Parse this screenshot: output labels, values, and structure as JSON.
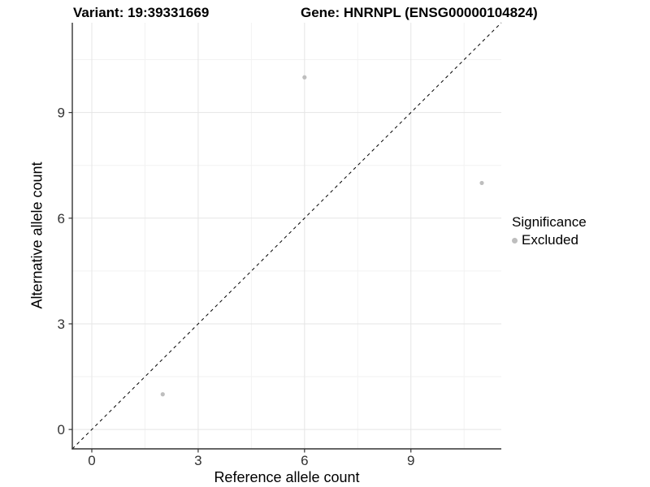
{
  "titles": {
    "variant": "Variant: 19:39331669",
    "gene": "Gene: HNRNPL (ENSG00000104824)"
  },
  "chart_data": {
    "type": "scatter",
    "title_left": "Variant: 19:39331669",
    "title_right": "Gene: HNRNPL (ENSG00000104824)",
    "xlabel": "Reference allele count",
    "ylabel": "Alternative allele count",
    "xlim": [
      -0.55,
      11.55
    ],
    "ylim": [
      -0.55,
      11.55
    ],
    "x_ticks": [
      0,
      3,
      6,
      9
    ],
    "y_ticks": [
      0,
      3,
      6,
      9
    ],
    "x_minor_ticks": [
      1.5,
      4.5,
      7.5,
      10.5
    ],
    "y_minor_ticks": [
      1.5,
      4.5,
      7.5,
      10.5
    ],
    "grid": true,
    "identity_line": {
      "style": "dashed",
      "from": -0.55,
      "to": 11.55
    },
    "series": [
      {
        "name": "Excluded",
        "color": "#bebebe",
        "points": [
          {
            "x": 2,
            "y": 1
          },
          {
            "x": 6,
            "y": 10
          },
          {
            "x": 11,
            "y": 7
          }
        ]
      }
    ],
    "legend": {
      "title": "Significance",
      "position": "right",
      "items": [
        {
          "label": "Excluded",
          "color": "#bebebe"
        }
      ]
    },
    "colors": {
      "point": "#bebebe",
      "grid_major": "#e5e5e5",
      "grid_minor": "#f2f2f2",
      "axis_line": "#333333",
      "tick_label": "#333333",
      "dashed_line": "#000000",
      "background": "#ffffff"
    }
  }
}
